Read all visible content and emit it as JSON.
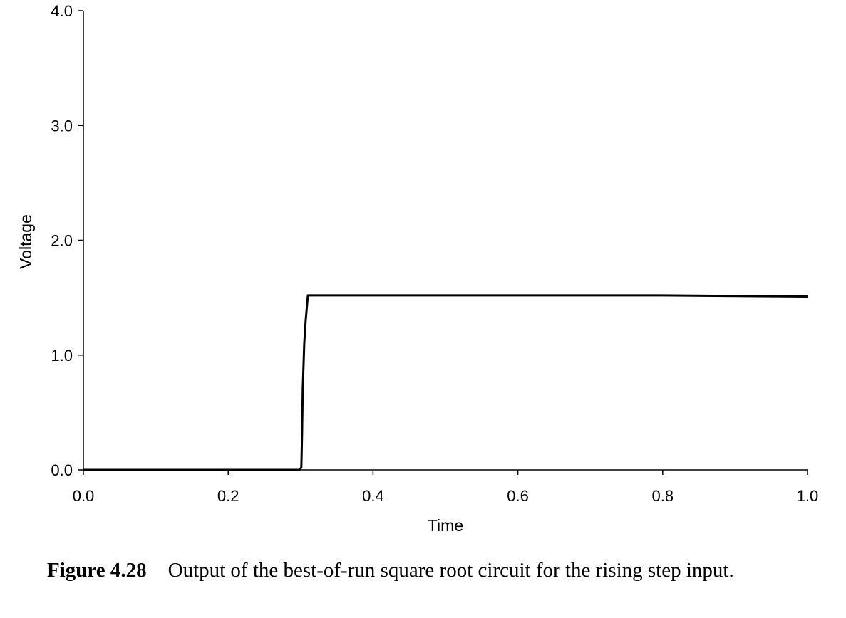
{
  "chart_data": {
    "type": "line",
    "title": "",
    "xlabel": "Time",
    "ylabel": "Voltage",
    "xlim": [
      0.0,
      1.0
    ],
    "ylim": [
      0.0,
      4.0
    ],
    "x_ticks": [
      "0.0",
      "0.2",
      "0.4",
      "0.6",
      "0.8",
      "1.0"
    ],
    "y_ticks": [
      "0.0",
      "1.0",
      "2.0",
      "3.0",
      "4.0"
    ],
    "grid": false,
    "series": [
      {
        "x": [
          0.0,
          0.28,
          0.298,
          0.301,
          0.302,
          0.303,
          0.305,
          0.307,
          0.31,
          0.4,
          0.6,
          0.8,
          1.0
        ],
        "y": [
          0.0,
          0.0,
          0.0,
          0.02,
          0.3,
          0.7,
          1.1,
          1.3,
          1.52,
          1.52,
          1.52,
          1.52,
          1.51
        ]
      }
    ]
  },
  "caption": {
    "figure_number": "Figure 4.28",
    "text": "Output of the best-of-run square root circuit for the rising step input."
  }
}
